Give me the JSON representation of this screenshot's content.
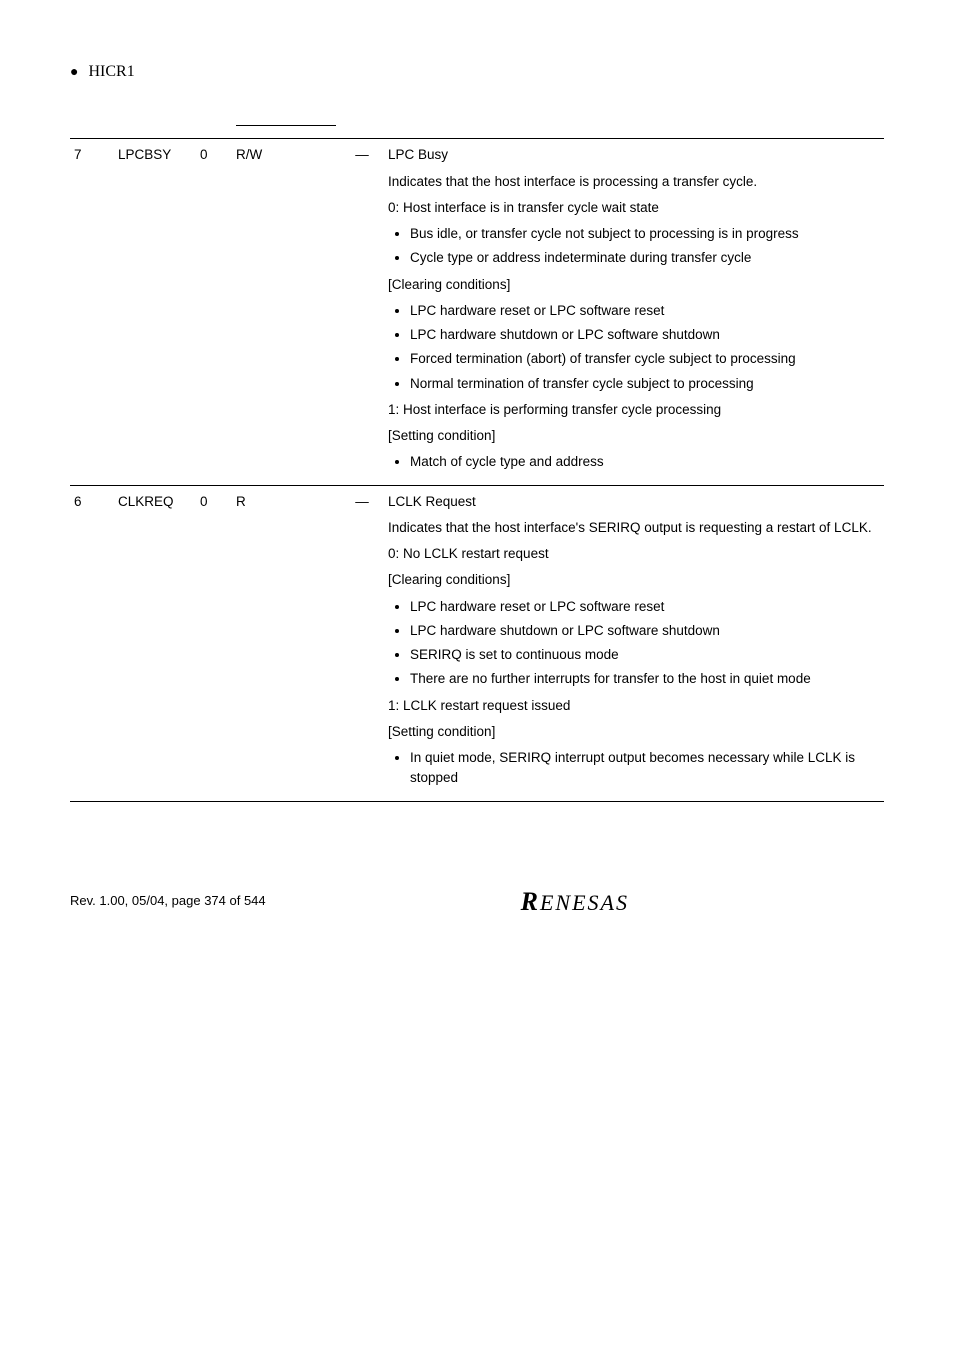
{
  "section_bullet": "HICR1",
  "table": {
    "rows": [
      {
        "bit": "7",
        "name": "LPCBSY",
        "initial": "0",
        "rw": "R/W",
        "dash": "—",
        "desc": {
          "title": "LPC Busy",
          "intro": "Indicates that the host interface is processing a transfer cycle.",
          "state0_header": "0: Host interface is in transfer cycle wait state",
          "state0_bullets": [
            "Bus idle, or transfer cycle not subject to processing is in progress",
            "Cycle type or address indeterminate during transfer cycle"
          ],
          "clearing_label": "[Clearing conditions]",
          "clearing_bullets": [
            "LPC hardware reset or LPC software reset",
            "LPC hardware shutdown or LPC software shutdown",
            "Forced termination (abort) of transfer cycle subject to processing",
            "Normal termination of transfer cycle subject to processing"
          ],
          "state1_header": "1: Host interface is performing transfer cycle processing",
          "setting_label": "[Setting condition]",
          "setting_bullets": [
            "Match of cycle type and address"
          ]
        }
      },
      {
        "bit": "6",
        "name": "CLKREQ",
        "initial": "0",
        "rw": "R",
        "dash": "—",
        "desc": {
          "title": "LCLK Request",
          "intro": "Indicates that the host interface's SERIRQ output is requesting a restart of LCLK.",
          "state0_header": "0: No LCLK restart request",
          "clearing_label": "[Clearing conditions]",
          "clearing_bullets": [
            "LPC hardware reset or LPC software reset",
            "LPC hardware shutdown or LPC software shutdown",
            "SERIRQ is set to continuous mode",
            "There are no further interrupts for transfer to the host in quiet mode"
          ],
          "state1_header": "1: LCLK restart request issued",
          "setting_label": "[Setting condition]",
          "setting_bullets": [
            "In quiet mode, SERIRQ interrupt output becomes necessary while LCLK is stopped"
          ]
        }
      }
    ]
  },
  "footer": {
    "rev": "Rev. 1.00, 05/04, page 374 of 544",
    "logo": "RENESAS"
  }
}
